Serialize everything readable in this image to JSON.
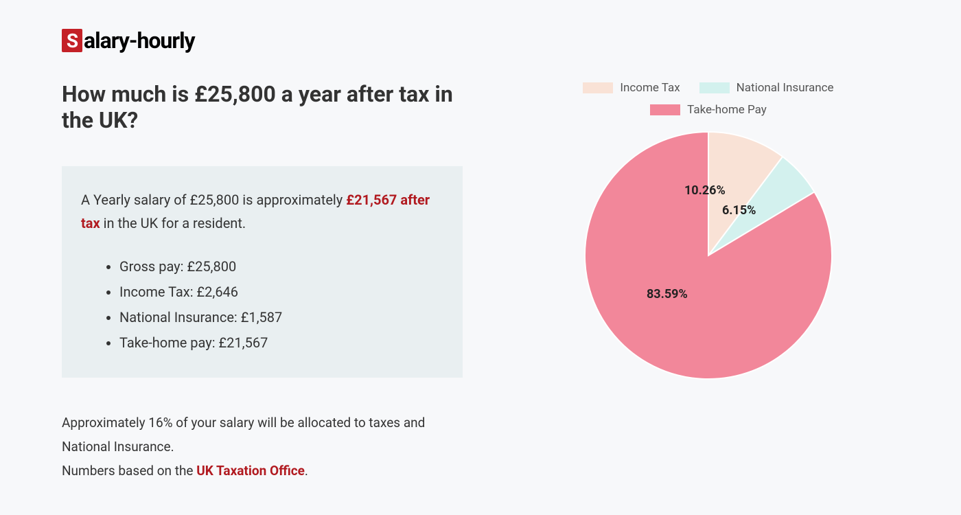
{
  "logo": {
    "s": "S",
    "rest": "alary-hourly"
  },
  "heading": "How much is £25,800 a year after tax in the UK?",
  "summary": {
    "prefix": "A Yearly salary of £25,800 is approximately ",
    "highlight": "£21,567 after tax",
    "suffix": " in the UK for a resident.",
    "bullets": [
      "Gross pay: £25,800",
      "Income Tax: £2,646",
      "National Insurance: £1,587",
      "Take-home pay: £21,567"
    ]
  },
  "footer": {
    "line1": "Approximately 16% of your salary will be allocated to taxes and National Insurance.",
    "line2_prefix": "Numbers based on the ",
    "line2_link": "UK Taxation Office",
    "line2_suffix": "."
  },
  "chart": {
    "type": "pie",
    "background_color": "#f7f8fa",
    "slices": [
      {
        "label": "Income Tax",
        "value": 10.26,
        "color": "#f9e2d6",
        "display": "10.26%"
      },
      {
        "label": "National Insurance",
        "value": 6.15,
        "color": "#d3f1ee",
        "display": "6.15%"
      },
      {
        "label": "Take-home Pay",
        "value": 83.59,
        "color": "#f2879a",
        "display": "83.59%"
      }
    ],
    "stroke": "#ffffff",
    "stroke_width": 2,
    "radius": 180,
    "label_fontsize": 18,
    "label_fontweight": 700,
    "label_color": "#222222",
    "legend_fontsize": 17,
    "legend_color": "#555555"
  }
}
